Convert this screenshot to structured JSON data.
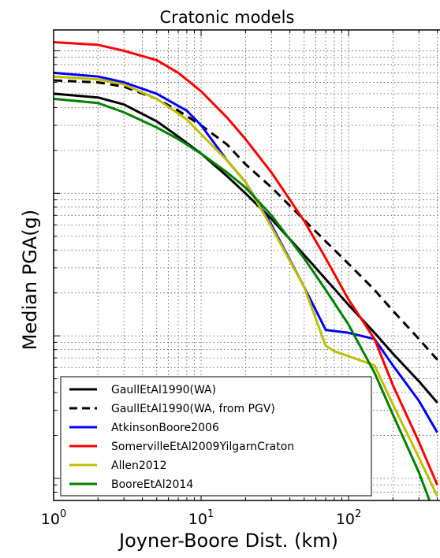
{
  "chart_data": {
    "type": "line",
    "title": "Cratonic models",
    "xlabel": "Joyner-Boore Dist. (km)",
    "ylabel": "Median PGA(g)",
    "x_scale": "log",
    "y_scale": "log",
    "xlim": [
      1,
      400
    ],
    "ylim": [
      0.0007,
      1.4
    ],
    "grid": true,
    "legend_position": "lower-left",
    "x_ticks": [
      {
        "base": "10",
        "exp": "0",
        "value": 1
      },
      {
        "base": "10",
        "exp": "1",
        "value": 10
      },
      {
        "base": "10",
        "exp": "2",
        "value": 100
      }
    ],
    "series": [
      {
        "name": "GaullEtAl1990(WA)",
        "color": "#000000",
        "dash": "solid",
        "points": [
          [
            1,
            0.5
          ],
          [
            2,
            0.47
          ],
          [
            3,
            0.42
          ],
          [
            5,
            0.32
          ],
          [
            7,
            0.25
          ],
          [
            10,
            0.19
          ],
          [
            15,
            0.132
          ],
          [
            20,
            0.1
          ],
          [
            30,
            0.066
          ],
          [
            50,
            0.037
          ],
          [
            70,
            0.025
          ],
          [
            100,
            0.0165
          ],
          [
            150,
            0.0105
          ],
          [
            200,
            0.0075
          ],
          [
            300,
            0.0048
          ],
          [
            400,
            0.0034
          ]
        ]
      },
      {
        "name": "GaullEtAl1990(WA, from PGV)",
        "color": "#000000",
        "dash": "dashed",
        "points": [
          [
            1,
            0.62
          ],
          [
            2,
            0.6
          ],
          [
            3,
            0.56
          ],
          [
            5,
            0.46
          ],
          [
            7,
            0.38
          ],
          [
            10,
            0.3
          ],
          [
            15,
            0.22
          ],
          [
            20,
            0.16
          ],
          [
            30,
            0.11
          ],
          [
            50,
            0.065
          ],
          [
            70,
            0.046
          ],
          [
            100,
            0.032
          ],
          [
            150,
            0.021
          ],
          [
            200,
            0.015
          ],
          [
            300,
            0.0095
          ],
          [
            400,
            0.0068
          ]
        ]
      },
      {
        "name": "AtkinsonBoore2006",
        "color": "#0000ff",
        "dash": "solid",
        "points": [
          [
            1,
            0.7
          ],
          [
            2,
            0.66
          ],
          [
            3,
            0.6
          ],
          [
            5,
            0.5
          ],
          [
            8,
            0.38
          ],
          [
            10,
            0.3
          ],
          [
            15,
            0.17
          ],
          [
            20,
            0.12
          ],
          [
            30,
            0.06
          ],
          [
            50,
            0.022
          ],
          [
            70,
            0.011
          ],
          [
            100,
            0.0105
          ],
          [
            150,
            0.0095
          ],
          [
            200,
            0.0062
          ],
          [
            300,
            0.0035
          ],
          [
            400,
            0.0021
          ]
        ]
      },
      {
        "name": "SomervilleEtAl2009YilgarnCraton",
        "color": "#ff0000",
        "dash": "solid",
        "points": [
          [
            1,
            1.15
          ],
          [
            2,
            1.1
          ],
          [
            3,
            1.0
          ],
          [
            5,
            0.86
          ],
          [
            7,
            0.7
          ],
          [
            10,
            0.52
          ],
          [
            15,
            0.34
          ],
          [
            20,
            0.24
          ],
          [
            30,
            0.14
          ],
          [
            50,
            0.064
          ],
          [
            70,
            0.035
          ],
          [
            100,
            0.018
          ],
          [
            150,
            0.0095
          ],
          [
            200,
            0.0045
          ],
          [
            300,
            0.0018
          ],
          [
            400,
            0.0009
          ]
        ]
      },
      {
        "name": "Allen2012",
        "color": "#bfbf00",
        "dash": "solid",
        "points": [
          [
            1,
            0.66
          ],
          [
            2,
            0.63
          ],
          [
            3,
            0.58
          ],
          [
            5,
            0.46
          ],
          [
            8,
            0.33
          ],
          [
            10,
            0.26
          ],
          [
            15,
            0.17
          ],
          [
            20,
            0.12
          ],
          [
            30,
            0.058
          ],
          [
            50,
            0.022
          ],
          [
            70,
            0.0085
          ],
          [
            80,
            0.0078
          ],
          [
            100,
            0.0072
          ],
          [
            150,
            0.0062
          ],
          [
            200,
            0.0033
          ],
          [
            300,
            0.0014
          ],
          [
            400,
            0.00075
          ]
        ]
      },
      {
        "name": "BooreEtAl2014",
        "color": "#008000",
        "dash": "solid",
        "points": [
          [
            1,
            0.46
          ],
          [
            2,
            0.43
          ],
          [
            3,
            0.37
          ],
          [
            5,
            0.29
          ],
          [
            7,
            0.24
          ],
          [
            10,
            0.19
          ],
          [
            15,
            0.14
          ],
          [
            20,
            0.11
          ],
          [
            30,
            0.07
          ],
          [
            50,
            0.035
          ],
          [
            70,
            0.021
          ],
          [
            100,
            0.012
          ],
          [
            150,
            0.0055
          ],
          [
            200,
            0.0028
          ],
          [
            300,
            0.0011
          ],
          [
            400,
            0.0005
          ]
        ]
      }
    ]
  }
}
